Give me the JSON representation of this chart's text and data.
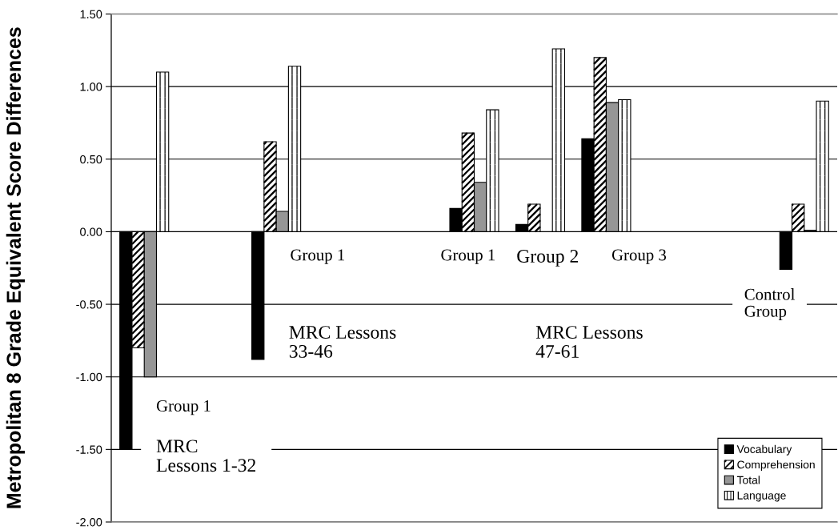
{
  "chart_data": {
    "type": "bar",
    "ylabel": "Metropolitan 8 Grade Equivalent Score Differences",
    "categories": [
      null,
      null,
      null,
      null,
      null,
      null,
      null,
      null,
      null,
      null,
      null
    ],
    "series": [
      {
        "name": "Vocabulary",
        "color": "#000000",
        "values": [
          -1.5,
          null,
          -0.88,
          null,
          null,
          0.16,
          0.05,
          0.64,
          null,
          null,
          -0.26
        ]
      },
      {
        "name": "Comprehension",
        "color": "#ffffff",
        "values": [
          -0.8,
          null,
          0.62,
          null,
          null,
          0.68,
          0.19,
          1.2,
          null,
          null,
          0.19
        ]
      },
      {
        "name": "Total",
        "color": "#969696",
        "values": [
          -1.0,
          null,
          0.14,
          null,
          null,
          0.34,
          null,
          0.89,
          null,
          null,
          0.01
        ]
      },
      {
        "name": "Language",
        "color": "#ffffff",
        "values": [
          1.1,
          null,
          1.14,
          null,
          null,
          0.84,
          1.26,
          0.91,
          null,
          null,
          0.9
        ]
      }
    ],
    "ylim": [
      -2,
      1.5
    ],
    "yticks": [
      {
        "value": -2,
        "label": "-2.00"
      },
      {
        "value": -1.5,
        "label": "-1.50"
      },
      {
        "value": -1,
        "label": "-1.00"
      },
      {
        "value": -0.5,
        "label": "-0.50"
      },
      {
        "value": 0,
        "label": "0.00"
      },
      {
        "value": 0.5,
        "label": "0.50"
      },
      {
        "value": 1,
        "label": "1.00"
      },
      {
        "value": 1.5,
        "label": "1.50"
      }
    ],
    "grid": "y",
    "legend": "bottom right",
    "tick_labels": "y",
    "annotations": [
      "Group 1",
      "MRC\nLessons 1-32",
      "Group 1",
      "MRC Lessons\n33-46",
      "Group 1",
      "Group 2",
      "Group 3",
      "MRC Lessons\n47-61",
      "Control\nGroup"
    ]
  }
}
